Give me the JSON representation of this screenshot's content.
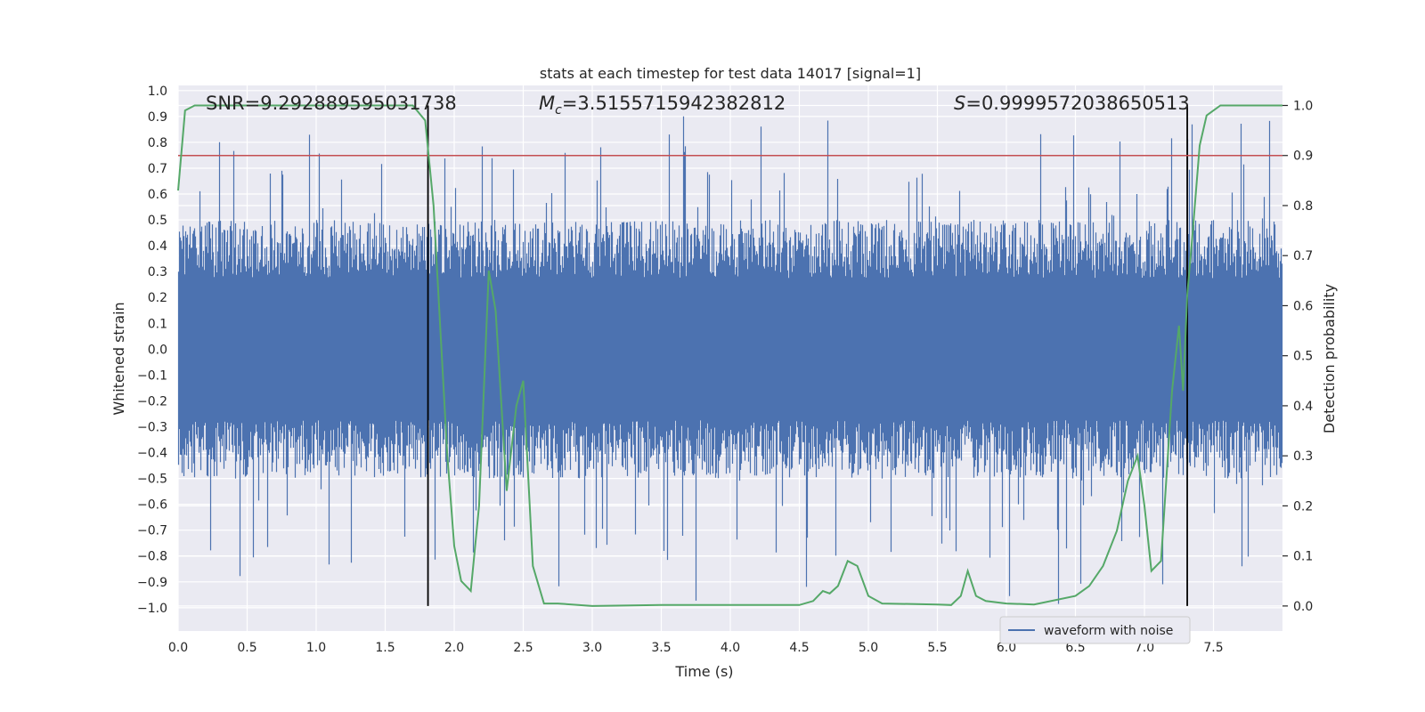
{
  "chart_data": {
    "type": "line",
    "title": "stats at each timestep for test data 14017 [signal=1]",
    "xlabel": "Time (s)",
    "ylabel_left": "Whitened strain",
    "ylabel_right": "Detection probability",
    "xlim": [
      0,
      8
    ],
    "ylim_left": [
      -1.09,
      1.02
    ],
    "ylim_right": [
      -0.05,
      1.04
    ],
    "x_ticks": [
      "0.0",
      "0.5",
      "1.0",
      "1.5",
      "2.0",
      "2.5",
      "3.0",
      "3.5",
      "4.0",
      "4.5",
      "5.0",
      "5.5",
      "6.0",
      "6.5",
      "7.0",
      "7.5"
    ],
    "y_left_ticks": [
      "1.0",
      "0.9",
      "0.8",
      "0.7",
      "0.6",
      "0.5",
      "0.4",
      "0.3",
      "0.2",
      "0.1",
      "0.0",
      "−0.1",
      "−0.2",
      "−0.3",
      "−0.4",
      "−0.5",
      "−0.6",
      "−0.7",
      "−0.8",
      "−0.9",
      "−1.0"
    ],
    "y_right_ticks": [
      "1.0",
      "0.9",
      "0.8",
      "0.7",
      "0.6",
      "0.5",
      "0.4",
      "0.3",
      "0.2",
      "0.1",
      "0.0"
    ],
    "grid": true,
    "legend_position": "lower-right",
    "annotations": {
      "snr": "SNR=9.292889595031738",
      "mc_symbol": "M",
      "mc_sub": "c",
      "mc_value": "=3.5155715942382812",
      "s_symbol": "S",
      "s_value": "=0.9999572038650513"
    },
    "threshold": 0.9,
    "detection_boundaries": [
      1.81,
      7.31
    ],
    "series": [
      {
        "name": "waveform with noise",
        "axis": "left",
        "color": "#4c72b0",
        "noise_band": {
          "typical_min": -0.5,
          "typical_max": 0.5,
          "peak_max": 0.93,
          "peak_min": -1.0
        }
      },
      {
        "axis": "right",
        "color": "#55a868",
        "x": [
          0.0,
          0.05,
          0.12,
          0.2,
          0.3,
          0.5,
          0.8,
          1.0,
          1.2,
          1.4,
          1.6,
          1.7,
          1.79,
          1.85,
          1.9,
          1.95,
          2.0,
          2.05,
          2.12,
          2.18,
          2.25,
          2.3,
          2.38,
          2.45,
          2.5,
          2.57,
          2.65,
          2.75,
          3.0,
          3.5,
          4.0,
          4.5,
          4.6,
          4.67,
          4.72,
          4.78,
          4.85,
          4.92,
          5.0,
          5.1,
          5.5,
          5.6,
          5.67,
          5.72,
          5.78,
          5.85,
          6.0,
          6.2,
          6.5,
          6.6,
          6.7,
          6.8,
          6.88,
          6.95,
          7.0,
          7.05,
          7.12,
          7.2,
          7.25,
          7.28,
          7.31,
          7.35,
          7.4,
          7.45,
          7.55,
          8.0
        ],
        "y": [
          0.83,
          0.99,
          1.0,
          1.0,
          1.0,
          1.0,
          1.0,
          1.0,
          1.0,
          1.0,
          1.0,
          1.0,
          0.97,
          0.8,
          0.55,
          0.3,
          0.12,
          0.05,
          0.03,
          0.2,
          0.67,
          0.59,
          0.23,
          0.4,
          0.45,
          0.08,
          0.005,
          0.005,
          0.0,
          0.002,
          0.002,
          0.002,
          0.01,
          0.03,
          0.025,
          0.04,
          0.09,
          0.08,
          0.02,
          0.005,
          0.003,
          0.002,
          0.02,
          0.07,
          0.02,
          0.01,
          0.005,
          0.003,
          0.02,
          0.04,
          0.08,
          0.15,
          0.25,
          0.3,
          0.2,
          0.07,
          0.09,
          0.43,
          0.56,
          0.43,
          0.62,
          0.75,
          0.92,
          0.98,
          1.0,
          1.0
        ]
      }
    ]
  }
}
